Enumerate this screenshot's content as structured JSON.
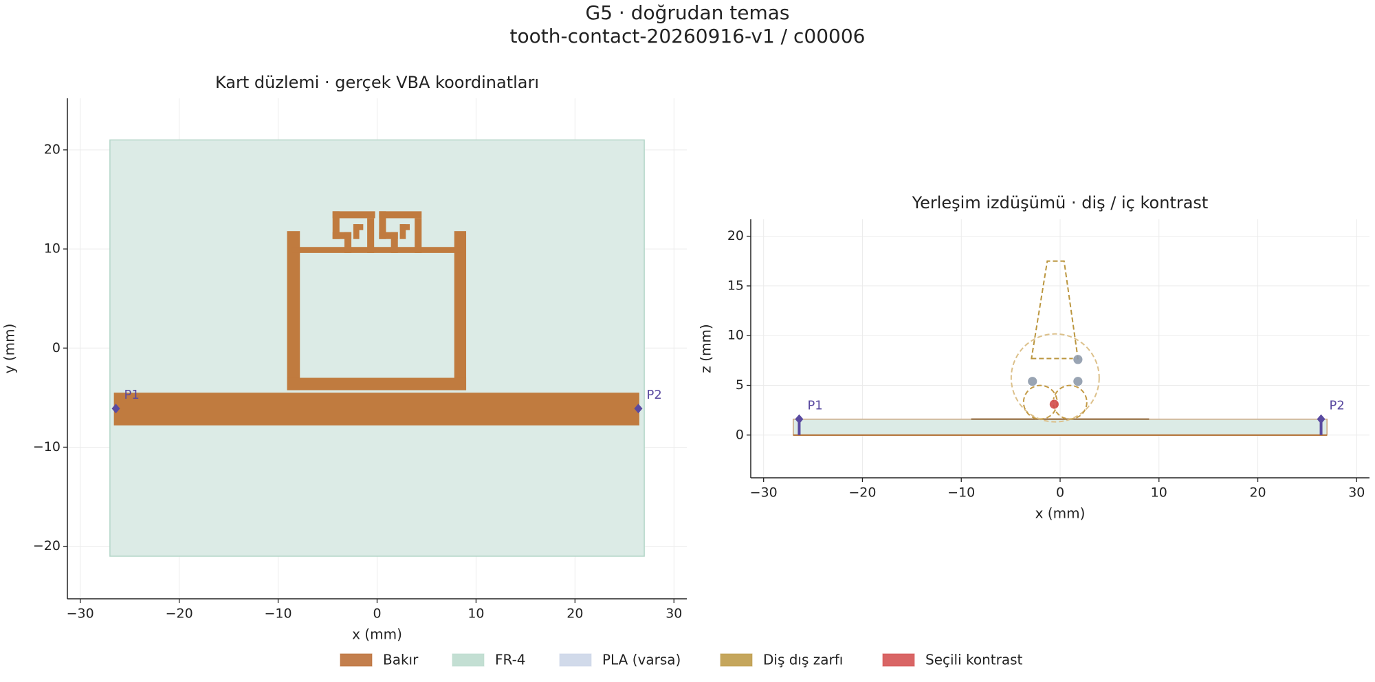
{
  "title": "G5 · doğrudan temas",
  "subtitle": "tooth-contact-20260916-v1 / c00006",
  "legend": [
    {
      "name": "Bakır",
      "color": "#b8692e"
    },
    {
      "name": "FR-4",
      "color": "#b9d9cb"
    },
    {
      "name": "PLA (varsa)",
      "color": "#c9d3e6"
    },
    {
      "name": "Diş dış zarfı",
      "color": "#bb963f"
    },
    {
      "name": "Seçili kontrast",
      "color": "#d24a4a"
    }
  ],
  "chart_data": [
    {
      "type": "geometry",
      "title": "Kart düzlemi · gerçek VBA koordinatları",
      "xlabel": "x (mm)",
      "ylabel": "y (mm)",
      "xlim": [
        -31.3,
        31.3
      ],
      "ylim": [
        -25.3,
        25.2
      ],
      "xticks": [
        {
          "value": -30,
          "label": "−30"
        },
        {
          "value": -20,
          "label": "−20"
        },
        {
          "value": -10,
          "label": "−10"
        },
        0,
        10,
        20,
        30
      ],
      "yticks": [
        {
          "value": -20,
          "label": "−20"
        },
        {
          "value": -10,
          "label": "−10"
        },
        0,
        10,
        20
      ],
      "grid": true,
      "rects": [
        {
          "x": [
            -27,
            27
          ],
          "y": [
            -21,
            21
          ],
          "color": "#dcebe6",
          "stroke": "#b3d6c8"
        },
        {
          "x": [
            -26.6,
            26.5
          ],
          "y": [
            -7.8,
            -4.5
          ],
          "color": "#c07b3f"
        },
        {
          "x": [
            -9.1,
            -7.8
          ],
          "y": [
            -4.25,
            11.8
          ],
          "color": "#c07b3f"
        },
        {
          "x": [
            7.8,
            9.0
          ],
          "y": [
            -4.25,
            11.8
          ],
          "color": "#c07b3f"
        },
        {
          "x": [
            -9.1,
            9.0
          ],
          "y": [
            -4.25,
            -3.0
          ],
          "color": "#c07b3f"
        },
        {
          "x": [
            -8.6,
            8.6
          ],
          "y": [
            9.6,
            10.2
          ],
          "color": "#c07b3f"
        },
        {
          "x": [
            -4.5,
            -0.2
          ],
          "y": [
            13.1,
            13.8
          ],
          "color": "#c07b3f"
        },
        {
          "x": [
            -4.5,
            -3.8
          ],
          "y": [
            11.0,
            13.8
          ],
          "color": "#c07b3f"
        },
        {
          "x": [
            -4.5,
            -2.6
          ],
          "y": [
            11.0,
            11.7
          ],
          "color": "#c07b3f"
        },
        {
          "x": [
            -3.3,
            -2.6
          ],
          "y": [
            9.6,
            11.7
          ],
          "color": "#c07b3f"
        },
        {
          "x": [
            -2.4,
            -1.4
          ],
          "y": [
            11.9,
            12.5
          ],
          "color": "#c07b3f"
        },
        {
          "x": [
            -2.4,
            -1.8
          ],
          "y": [
            11.0,
            12.5
          ],
          "color": "#c07b3f"
        },
        {
          "x": [
            -1.0,
            -0.3
          ],
          "y": [
            9.6,
            13.1
          ],
          "color": "#c07b3f"
        },
        {
          "x": [
            0.2,
            4.5
          ],
          "y": [
            13.1,
            13.8
          ],
          "color": "#c07b3f"
        },
        {
          "x": [
            0.2,
            0.9
          ],
          "y": [
            11.0,
            13.8
          ],
          "color": "#c07b3f"
        },
        {
          "x": [
            0.2,
            2.1
          ],
          "y": [
            11.0,
            11.7
          ],
          "color": "#c07b3f"
        },
        {
          "x": [
            1.4,
            2.1
          ],
          "y": [
            9.6,
            11.7
          ],
          "color": "#c07b3f"
        },
        {
          "x": [
            2.3,
            3.3
          ],
          "y": [
            11.9,
            12.5
          ],
          "color": "#c07b3f"
        },
        {
          "x": [
            2.3,
            2.9
          ],
          "y": [
            11.0,
            12.5
          ],
          "color": "#c07b3f"
        },
        {
          "x": [
            3.8,
            4.5
          ],
          "y": [
            9.6,
            13.1
          ],
          "color": "#c07b3f"
        }
      ],
      "ports": {
        "color": "#5a4aa0",
        "points": [
          {
            "label": "P1",
            "x": -26.4,
            "y": -6.1
          },
          {
            "label": "P2",
            "x": 26.4,
            "y": -6.1
          }
        ]
      }
    },
    {
      "type": "geometry",
      "title": "Yerleşim izdüşümü · diş / iç kontrast",
      "xlabel": "x (mm)",
      "ylabel": "z (mm)",
      "xlim": [
        -31.3,
        31.3
      ],
      "ylim": [
        -4.3,
        21.7
      ],
      "xticks": [
        {
          "value": -30,
          "label": "−30"
        },
        {
          "value": -20,
          "label": "−20"
        },
        {
          "value": -10,
          "label": "−10"
        },
        0,
        10,
        20,
        30
      ],
      "yticks": [
        0,
        5,
        10,
        15,
        20
      ],
      "grid": true,
      "rects": [
        {
          "x": [
            -27,
            27
          ],
          "y": [
            0,
            1.6
          ],
          "color": "#dcebe6",
          "stroke": "#c9a27a"
        }
      ],
      "lines": [
        {
          "x": [
            -27,
            27
          ],
          "y": [
            0,
            0
          ],
          "color": "#b06a2c"
        },
        {
          "x": [
            -9,
            9
          ],
          "y": [
            1.6,
            1.6
          ],
          "color": "#8a5a2a"
        }
      ],
      "polygons": [
        {
          "x": [
            -2.9,
            1.8,
            0.4,
            -1.3
          ],
          "y": [
            7.7,
            7.7,
            17.5,
            17.5
          ],
          "color": "#bb963f",
          "dashed": true
        }
      ],
      "circles": [
        {
          "x": -0.5,
          "y": 5.75,
          "r": 4.45,
          "color": "#dcc08a",
          "dashed": true
        },
        {
          "x": -2.0,
          "y": 3.3,
          "r": 1.7,
          "color": "#c39a45",
          "dashed": true
        },
        {
          "x": 1.0,
          "y": 3.3,
          "r": 1.7,
          "color": "#c39a45",
          "dashed": true
        }
      ],
      "points": [
        {
          "x": -2.8,
          "y": 5.4,
          "color": "#8e9aab"
        },
        {
          "x": 1.8,
          "y": 5.4,
          "color": "#8e9aab"
        },
        {
          "x": 1.8,
          "y": 7.6,
          "color": "#8e9aab"
        },
        {
          "x": -0.6,
          "y": 3.1,
          "color": "#d24a4a"
        }
      ],
      "ports": {
        "color": "#5a4aa0",
        "points": [
          {
            "label": "P1",
            "x": -26.4,
            "y": 1.6,
            "base": 0
          },
          {
            "label": "P2",
            "x": 26.4,
            "y": 1.6,
            "base": 0
          }
        ]
      }
    }
  ]
}
